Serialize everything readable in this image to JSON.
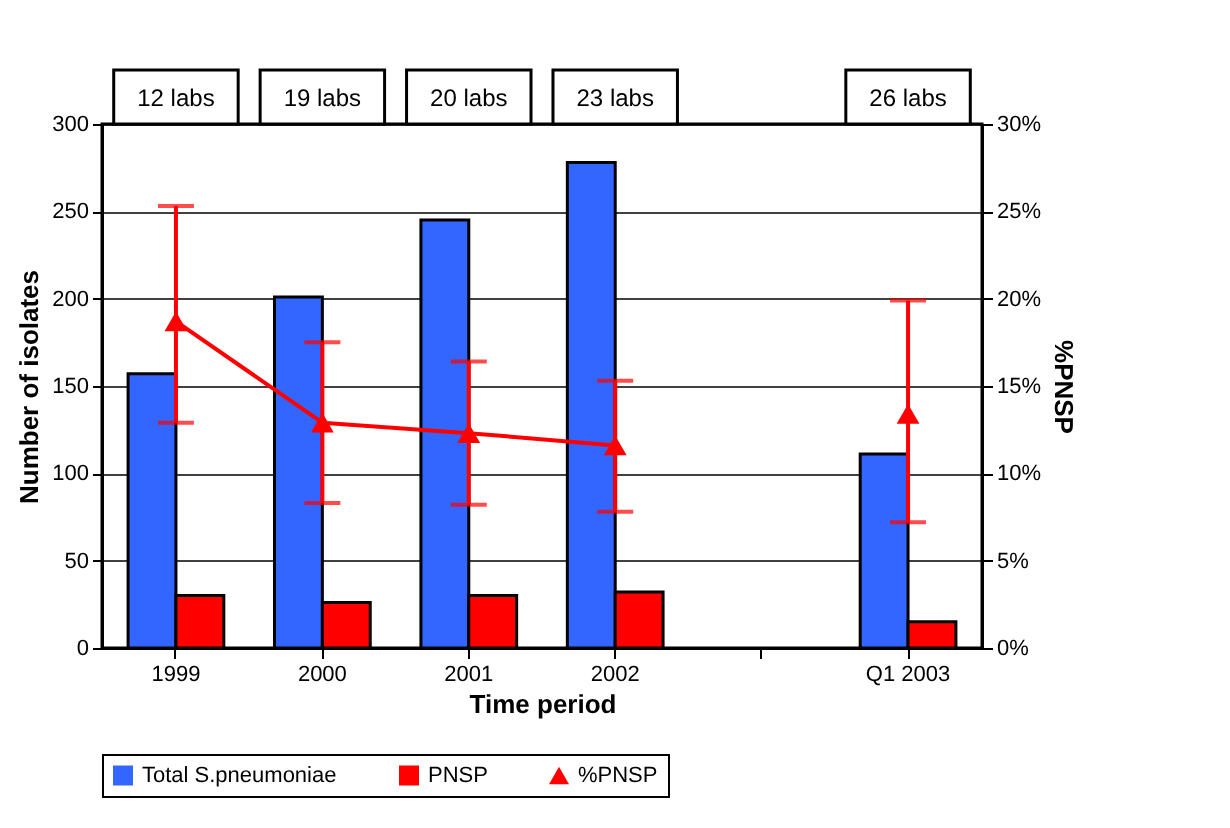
{
  "chart_data": {
    "type": "bar",
    "categories": [
      "1999",
      "2000",
      "2001",
      "2002",
      null,
      "Q1 2003"
    ],
    "xlabel": "Time period",
    "ylabel": "Number of isolates",
    "y2label": "%PNSP",
    "ylim": [
      0,
      300
    ],
    "yticks": [
      0,
      50,
      100,
      150,
      200,
      250,
      300
    ],
    "y2lim": [
      0,
      30
    ],
    "y2ticks": [
      {
        "value": 0,
        "label": "0%"
      },
      {
        "value": 5,
        "label": "5%"
      },
      {
        "value": 10,
        "label": "10%"
      },
      {
        "value": 15,
        "label": "15%"
      },
      {
        "value": 20,
        "label": "20%"
      },
      {
        "value": 25,
        "label": "25%"
      },
      {
        "value": 30,
        "label": "30%"
      }
    ],
    "grid": "y",
    "legend": "bottom",
    "marker": "triangle",
    "line_style": "solid",
    "annotations": [
      "12 labs",
      "19 labs",
      "20  labs",
      "23 labs",
      "26 labs"
    ],
    "series": [
      {
        "name": "Total S.pneumoniae",
        "color": "#3366ff",
        "values": [
          157,
          201,
          245,
          278,
          null,
          111
        ]
      },
      {
        "name": "PNSP",
        "color": "#ff0000",
        "values": [
          30,
          26,
          30,
          32,
          null,
          15
        ]
      },
      {
        "name": "%PNSP",
        "type": "line",
        "axis": "y2",
        "color": "#ff0000",
        "values": [
          18.7,
          12.9,
          12.3,
          11.6,
          null,
          13.4
        ],
        "errors": [
          [
            12.9,
            25.3
          ],
          [
            8.3,
            17.5
          ],
          [
            8.2,
            16.4
          ],
          [
            7.8,
            15.3
          ],
          null,
          [
            7.2,
            19.9
          ]
        ]
      }
    ]
  }
}
